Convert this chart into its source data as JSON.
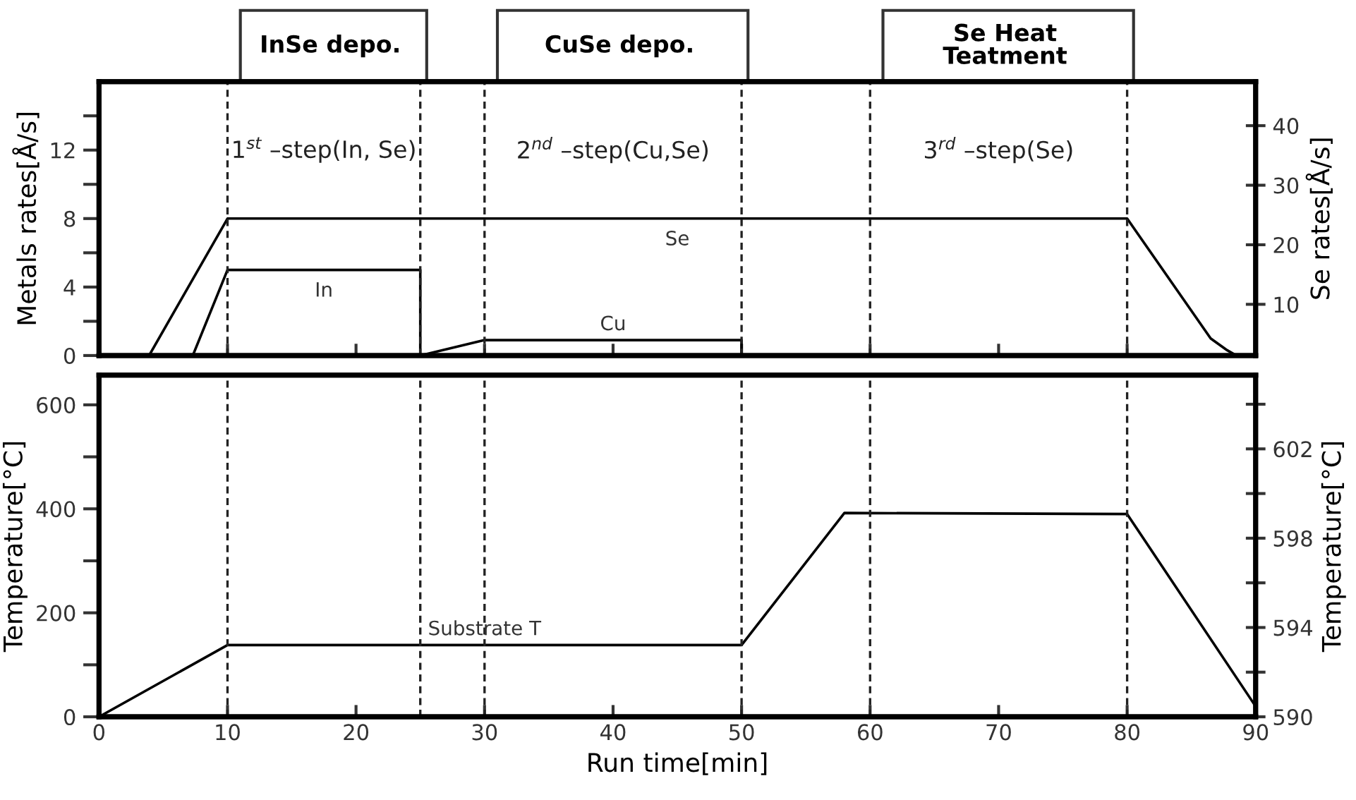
{
  "chart_data": [
    {
      "type": "line",
      "ylabel": "Metals rates[Å/s]",
      "y2label": "Se rates[Å/s]",
      "series": [
        {
          "name": "Se",
          "color": "#000000",
          "x": [
            3.9,
            10,
            80,
            86.5,
            87.8,
            88.5
          ],
          "values": [
            0,
            8,
            8,
            1,
            0.3,
            0
          ]
        },
        {
          "name": "In",
          "color": "#000000",
          "x": [
            7.3,
            10,
            25,
            25
          ],
          "values": [
            0,
            5,
            5,
            0
          ]
        },
        {
          "name": "Cu",
          "color": "#000000",
          "x": [
            25,
            30,
            50,
            50
          ],
          "values": [
            0,
            0.9,
            0.9,
            0
          ]
        }
      ],
      "xlim": [
        0,
        90
      ],
      "xticks": [
        0,
        10,
        20,
        30,
        40,
        50,
        60,
        70,
        80,
        90
      ],
      "ylim": [
        0,
        16
      ],
      "yticks": [
        0,
        {
          "value": 2,
          "label": null
        },
        4,
        {
          "value": 6,
          "label": null
        },
        8,
        {
          "value": 10,
          "label": null
        },
        12,
        {
          "value": 14,
          "label": null
        }
      ],
      "y2lim": [
        1.4,
        47.4
      ],
      "y2ticks": [
        10,
        20,
        30,
        40
      ],
      "tick_labels": "y",
      "grid": false,
      "legend": false,
      "marker": "none",
      "line_style": "solid",
      "ref_lines": [
        {
          "axis": "x",
          "value": 10,
          "line_style": "dashed"
        },
        {
          "axis": "x",
          "value": 25,
          "line_style": "dashed"
        },
        {
          "axis": "x",
          "value": 30,
          "line_style": "dashed"
        },
        {
          "axis": "x",
          "value": 50,
          "line_style": "dashed"
        },
        {
          "axis": "x",
          "value": 60,
          "line_style": "dashed"
        },
        {
          "axis": "x",
          "value": 80,
          "line_style": "dashed"
        }
      ],
      "annotations": [
        "InSe depo.",
        "CuSe depo.",
        "Se Heat\nTeatment",
        "1$^{st}$ –step(In, Se)",
        "2$^{nd}$ –step(Cu,Se)",
        "3$^{rd}$ –step(Se)"
      ]
    },
    {
      "type": "line",
      "xlabel": "Run time[min]",
      "ylabel": "Temperature[°C]",
      "y2label": "Temperature[°C]",
      "series": [
        {
          "name": "Substrate T",
          "color": "#000000",
          "x": [
            0,
            10,
            50,
            58,
            80,
            90
          ],
          "values": [
            0,
            138,
            138,
            392,
            390,
            20
          ]
        }
      ],
      "xlim": [
        0,
        90
      ],
      "xticks": [
        0,
        10,
        20,
        30,
        40,
        50,
        60,
        70,
        80,
        90
      ],
      "ylim": [
        0,
        657
      ],
      "yticks": [
        0,
        {
          "value": 100,
          "label": null
        },
        200,
        {
          "value": 300,
          "label": null
        },
        400,
        {
          "value": 500,
          "label": null
        },
        600
      ],
      "y2lim": [
        590,
        605.3
      ],
      "y2ticks": [
        590,
        {
          "value": 592,
          "label": null
        },
        594,
        {
          "value": 596,
          "label": null
        },
        598,
        {
          "value": 600,
          "label": null
        },
        602,
        {
          "value": 604,
          "label": null
        }
      ],
      "grid": false,
      "legend": false,
      "marker": "none",
      "line_style": "solid",
      "ref_lines": [
        {
          "axis": "x",
          "value": 10,
          "line_style": "dashed"
        },
        {
          "axis": "x",
          "value": 25,
          "line_style": "dashed"
        },
        {
          "axis": "x",
          "value": 30,
          "line_style": "dashed"
        },
        {
          "axis": "x",
          "value": 50,
          "line_style": "dashed"
        },
        {
          "axis": "x",
          "value": 60,
          "line_style": "dashed"
        },
        {
          "axis": "x",
          "value": 80,
          "line_style": "dashed"
        }
      ]
    }
  ]
}
